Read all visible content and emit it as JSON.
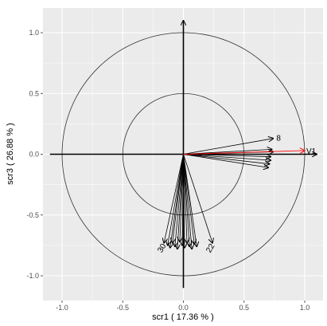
{
  "chart_data": {
    "type": "scatter",
    "subtype": "pca-correlation-circle",
    "title": "",
    "xlabel": "scr1 ( 17.36 % )",
    "ylabel": "scr3 ( 26.88 % )",
    "xlim": [
      -1.15,
      1.15
    ],
    "ylim": [
      -1.15,
      1.15
    ],
    "x_ticks": [
      -1.0,
      -0.5,
      0.0,
      0.5,
      1.0
    ],
    "x_tick_labels": [
      "-1.0",
      "-0.5",
      "0.0",
      "0.5",
      "1.0"
    ],
    "y_ticks": [
      -1.0,
      -0.5,
      0.0,
      0.5,
      1.0
    ],
    "y_tick_labels": [
      "-1.0",
      "-0.5",
      "0.0",
      "0.5",
      "1.0"
    ],
    "grid": true,
    "panel_background": "#ebebeb",
    "grid_color": "#ffffff",
    "circles": [
      {
        "radius": 1.0,
        "color": "#333333"
      },
      {
        "radius": 0.5,
        "color": "#333333"
      }
    ],
    "supplementary_vector": {
      "label": "V1",
      "x": 1.0,
      "y": 0.03,
      "color": "#ff0000"
    },
    "vectors": [
      {
        "label": "8",
        "x": 0.74,
        "y": 0.13
      },
      {
        "label": "",
        "x": 0.73,
        "y": 0.04
      },
      {
        "label": "",
        "x": 0.74,
        "y": 0.02
      },
      {
        "label": "",
        "x": 0.72,
        "y": -0.02
      },
      {
        "label": "",
        "x": 0.72,
        "y": -0.05
      },
      {
        "label": "",
        "x": 0.71,
        "y": -0.08
      },
      {
        "label": "",
        "x": 0.7,
        "y": -0.11
      },
      {
        "label": "30",
        "x": -0.16,
        "y": -0.73
      },
      {
        "label": "",
        "x": -0.13,
        "y": -0.75
      },
      {
        "label": "",
        "x": -0.11,
        "y": -0.77
      },
      {
        "label": "",
        "x": -0.09,
        "y": -0.73
      },
      {
        "label": "",
        "x": -0.07,
        "y": -0.76
      },
      {
        "label": "",
        "x": -0.05,
        "y": -0.78
      },
      {
        "label": "",
        "x": -0.03,
        "y": -0.72
      },
      {
        "label": "",
        "x": -0.01,
        "y": -0.75
      },
      {
        "label": "",
        "x": 0.01,
        "y": -0.77
      },
      {
        "label": "",
        "x": 0.03,
        "y": -0.73
      },
      {
        "label": "",
        "x": 0.05,
        "y": -0.76
      },
      {
        "label": "",
        "x": 0.07,
        "y": -0.78
      },
      {
        "label": "",
        "x": 0.09,
        "y": -0.74
      },
      {
        "label": "",
        "x": 0.11,
        "y": -0.76
      },
      {
        "label": "22",
        "x": 0.24,
        "y": -0.73
      }
    ]
  }
}
